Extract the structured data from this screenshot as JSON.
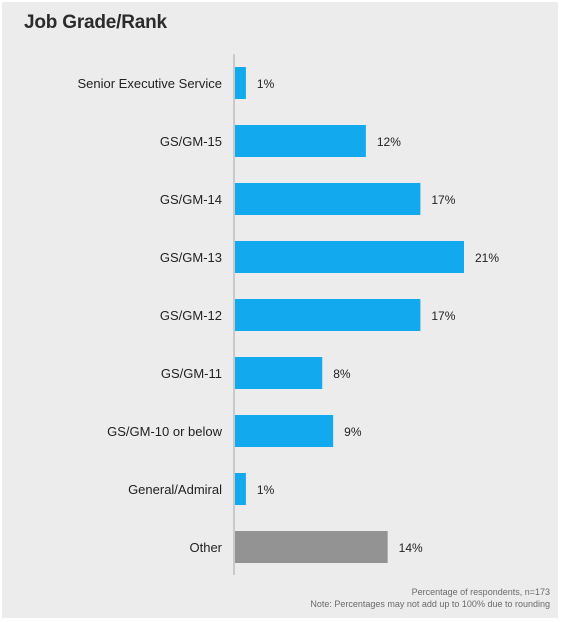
{
  "title": "Job Grade/Rank",
  "chart_data": {
    "type": "bar",
    "orientation": "horizontal",
    "categories": [
      "Senior Executive Service",
      "GS/GM-15",
      "GS/GM-14",
      "GS/GM-13",
      "GS/GM-12",
      "GS/GM-11",
      "GS/GM-10 or below",
      "General/Admiral",
      "Other"
    ],
    "values": [
      1,
      12,
      17,
      21,
      17,
      8,
      9,
      1,
      14
    ],
    "value_labels": [
      "1%",
      "12%",
      "17%",
      "21%",
      "17%",
      "8%",
      "9%",
      "1%",
      "14%"
    ],
    "colors": [
      "#12a9ef",
      "#12a9ef",
      "#12a9ef",
      "#12a9ef",
      "#12a9ef",
      "#12a9ef",
      "#12a9ef",
      "#12a9ef",
      "#939393"
    ],
    "unit": "%",
    "xlim": [
      0,
      21
    ]
  },
  "footnote": {
    "line1": "Percentage of respondents, n=173",
    "line2": "Note: Percentages may not add up to 100% due to rounding"
  }
}
